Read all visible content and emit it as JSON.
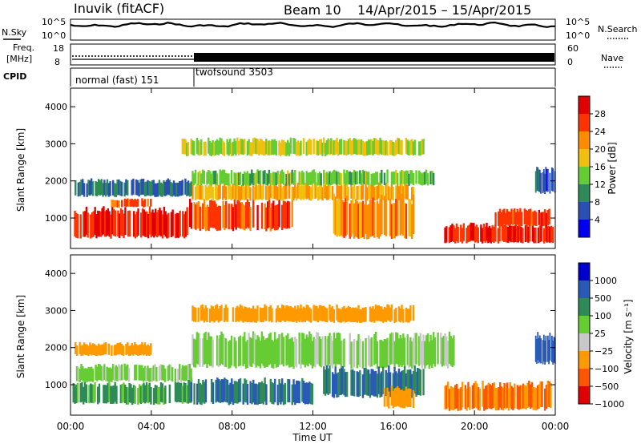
{
  "header": {
    "station": "Inuvik (fitACF)",
    "beam": "Beam 10",
    "date_range": "14/Apr/2015 – 15/Apr/2015"
  },
  "noise_panel": {
    "left_label": "N.Sky",
    "right_label": "N.Search",
    "left_ticks": [
      "10^5",
      "10^0"
    ],
    "right_ticks": [
      "10^5",
      "10^0"
    ]
  },
  "freq_panel": {
    "left_label_1": "Freq.",
    "left_label_2": "[MHz]",
    "right_label": "Nave",
    "left_ticks": [
      "18",
      "8"
    ],
    "right_ticks": [
      "60",
      "0"
    ]
  },
  "cpid_panel": {
    "label": "CPID",
    "modes": [
      "normal (fast) 151",
      "twofsound 3503"
    ]
  },
  "chart_data": [
    {
      "type": "heatmap",
      "name": "power",
      "xlabel": "",
      "ylabel": "Slant Range [km]",
      "x_range": [
        "00:00",
        "24:00"
      ],
      "ylim": [
        180,
        4500
      ],
      "y_ticks": [
        1000,
        2000,
        3000,
        4000
      ],
      "colorbar": {
        "label": "Power [dB]",
        "ticks": [
          "4",
          "8",
          "12",
          "16",
          "20",
          "24",
          "28"
        ],
        "colors": [
          "#0000ee",
          "#2a4fb5",
          "#2e8b57",
          "#66cc33",
          "#f0c010",
          "#ff8c00",
          "#ff3300",
          "#e00000"
        ]
      },
      "bands": [
        {
          "t0": 0.1,
          "t1": 5.8,
          "r0": 500,
          "r1": 1200,
          "level": 28
        },
        {
          "t0": 5.8,
          "t1": 11.0,
          "r0": 700,
          "r1": 1400,
          "level": 26
        },
        {
          "t0": 2.0,
          "t1": 4.0,
          "r0": 1300,
          "r1": 1500,
          "level": 24
        },
        {
          "t0": 6.0,
          "t1": 17.0,
          "r0": 1500,
          "r1": 1900,
          "level": 20
        },
        {
          "t0": 6.0,
          "t1": 18.0,
          "r0": 1900,
          "r1": 2250,
          "level": 14
        },
        {
          "t0": 0.2,
          "t1": 6.0,
          "r0": 1600,
          "r1": 2000,
          "level": 8
        },
        {
          "t0": 5.5,
          "t1": 17.5,
          "r0": 2700,
          "r1": 3100,
          "level": 16
        },
        {
          "t0": 13.0,
          "t1": 17.0,
          "r0": 500,
          "r1": 1500,
          "level": 22
        },
        {
          "t0": 18.5,
          "t1": 23.9,
          "r0": 350,
          "r1": 800,
          "level": 28
        },
        {
          "t0": 21.0,
          "t1": 23.8,
          "r0": 800,
          "r1": 1200,
          "level": 26
        },
        {
          "t0": 23.0,
          "t1": 24.0,
          "r0": 1700,
          "r1": 2300,
          "level": 6
        }
      ]
    },
    {
      "type": "heatmap",
      "name": "velocity",
      "xlabel": "Time UT",
      "ylabel": "Slant Range [km]",
      "x_ticks": [
        "00:00",
        "04:00",
        "08:00",
        "12:00",
        "16:00",
        "20:00",
        "00:00"
      ],
      "ylim": [
        180,
        4500
      ],
      "y_ticks": [
        1000,
        2000,
        3000,
        4000
      ],
      "colorbar": {
        "label": "Velocity [m s⁻¹]",
        "ticks": [
          "1000",
          "500",
          "100",
          "25",
          "−25",
          "−100",
          "−500",
          "−1000"
        ],
        "colors": [
          "#0000cc",
          "#2a5ab8",
          "#2e8b57",
          "#66cc33",
          "#c8c8c8",
          "#ff9900",
          "#ff5500",
          "#e00000"
        ]
      },
      "bands": [
        {
          "t0": 0.1,
          "t1": 6.0,
          "r0": 500,
          "r1": 1000,
          "level": 80
        },
        {
          "t0": 5.8,
          "t1": 12.0,
          "r0": 500,
          "r1": 1100,
          "level": 300
        },
        {
          "t0": 0.2,
          "t1": 6.0,
          "r0": 1100,
          "r1": 1500,
          "level": 0
        },
        {
          "t0": 6.0,
          "t1": 19.0,
          "r0": 1500,
          "r1": 2300,
          "level": 0
        },
        {
          "t0": 12.5,
          "t1": 17.5,
          "r0": 700,
          "r1": 1400,
          "level": 300
        },
        {
          "t0": 15.5,
          "t1": 17.0,
          "r0": 400,
          "r1": 900,
          "level": -100
        },
        {
          "t0": 18.5,
          "t1": 23.8,
          "r0": 350,
          "r1": 1000,
          "level": -300
        },
        {
          "t0": 6.0,
          "t1": 17.0,
          "r0": 2700,
          "r1": 3100,
          "level": -100
        },
        {
          "t0": 0.2,
          "t1": 4.0,
          "r0": 1800,
          "r1": 2100,
          "level": -100
        },
        {
          "t0": 23.0,
          "t1": 24.0,
          "r0": 1600,
          "r1": 2300,
          "level": 700
        }
      ]
    }
  ]
}
